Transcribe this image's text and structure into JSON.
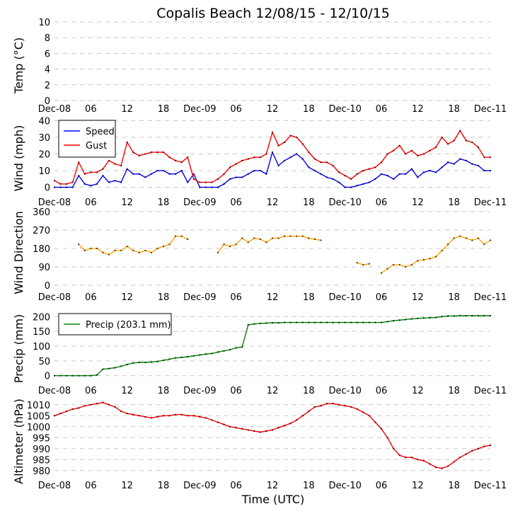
{
  "chart_data": [
    {
      "type": "line",
      "id": "temp",
      "title": "Copalis Beach 12/08/15 - 12/10/15",
      "ylabel": "Temp ($^{\\circ}$C)",
      "ylabel_display": "Temp (°C)",
      "ylim": [
        0,
        10
      ],
      "yticks": [
        0,
        2,
        4,
        6,
        8,
        10
      ],
      "grid": true,
      "series": []
    },
    {
      "type": "line",
      "id": "wind",
      "ylabel": "Wind (mph)",
      "ylim": [
        -1,
        41
      ],
      "yticks": [
        0,
        10,
        20,
        30,
        40
      ],
      "grid": true,
      "legend": "top-left",
      "series": [
        {
          "name": "Speed",
          "color": "#0000ff",
          "values": [
            0,
            0,
            0,
            0,
            7,
            2,
            1,
            2,
            7,
            3,
            4,
            3,
            11,
            8,
            8,
            6,
            8,
            10,
            10,
            8,
            8,
            10,
            3,
            8,
            0,
            0,
            0,
            0,
            2,
            5,
            6,
            6,
            8,
            10,
            10,
            8,
            21,
            13,
            16,
            18,
            20,
            17,
            12,
            10,
            8,
            6,
            5,
            3,
            0,
            0,
            1,
            2,
            3,
            5,
            8,
            7,
            5,
            8,
            8,
            11,
            6,
            9,
            10,
            9,
            12,
            15,
            14,
            17,
            16,
            14,
            13,
            10,
            10
          ]
        },
        {
          "name": "Gust",
          "color": "#ff0000",
          "values": [
            4,
            2,
            2,
            3,
            15,
            8,
            9,
            9,
            11,
            16,
            14,
            13,
            27,
            21,
            19,
            20,
            21,
            21,
            21,
            18,
            16,
            15,
            18,
            5,
            3,
            3,
            3,
            5,
            8,
            12,
            14,
            16,
            17,
            18,
            18,
            20,
            33,
            25,
            27,
            31,
            30,
            26,
            21,
            17,
            15,
            15,
            13,
            9,
            7,
            5,
            8,
            10,
            11,
            12,
            15,
            20,
            22,
            25,
            20,
            22,
            19,
            20,
            22,
            24,
            30,
            26,
            28,
            34,
            28,
            27,
            24,
            18,
            18
          ]
        }
      ]
    },
    {
      "type": "line",
      "id": "direction",
      "ylabel": "Wind Direction",
      "ylim": [
        0,
        360
      ],
      "yticks": [
        0,
        90,
        180,
        270,
        360
      ],
      "grid": true,
      "series": [
        {
          "name": "Direction",
          "color": "#ffa500",
          "values": [
            null,
            null,
            null,
            null,
            200,
            170,
            180,
            180,
            160,
            150,
            170,
            170,
            190,
            170,
            160,
            170,
            160,
            180,
            190,
            200,
            240,
            240,
            225,
            null,
            null,
            null,
            null,
            160,
            200,
            190,
            200,
            230,
            210,
            230,
            225,
            210,
            230,
            230,
            240,
            240,
            240,
            240,
            230,
            225,
            220,
            null,
            null,
            null,
            null,
            null,
            110,
            100,
            105,
            null,
            60,
            80,
            100,
            100,
            90,
            100,
            120,
            125,
            130,
            140,
            170,
            200,
            230,
            240,
            230,
            220,
            230,
            200,
            220
          ]
        }
      ]
    },
    {
      "type": "line",
      "id": "precip",
      "ylabel": "Precip (mm)",
      "ylim": [
        -3,
        215
      ],
      "yticks": [
        0,
        50,
        100,
        150,
        200
      ],
      "grid": true,
      "legend": "top-left",
      "series": [
        {
          "name": "Precip (203.1 mm)",
          "color": "#008000",
          "values": [
            0,
            0,
            0,
            0,
            0,
            0,
            0,
            2,
            22,
            24,
            27,
            32,
            38,
            43,
            45,
            45,
            46,
            48,
            52,
            56,
            60,
            62,
            64,
            67,
            70,
            73,
            75,
            80,
            84,
            88,
            94,
            97,
            172,
            175,
            177,
            178,
            179,
            179,
            180,
            180,
            180,
            180,
            180,
            180,
            180,
            180,
            180,
            180,
            180,
            180,
            180,
            180,
            180,
            180,
            180,
            183,
            186,
            188,
            190,
            192,
            194,
            195,
            196,
            197,
            200,
            202,
            202,
            203,
            203,
            203,
            203,
            203.1,
            203.1
          ]
        }
      ]
    },
    {
      "type": "line",
      "id": "altimeter",
      "ylabel": "Altimeter (hPa)",
      "xlabel": "Time (UTC)",
      "ylim": [
        978,
        1012.5
      ],
      "yticks": [
        980,
        985,
        990,
        995,
        1000,
        1005,
        1010
      ],
      "grid": true,
      "series": [
        {
          "name": "Altimeter",
          "color": "#ff0000",
          "values": [
            1005,
            1006,
            1007,
            1008,
            1008.5,
            1009.5,
            1010,
            1010.5,
            1011,
            1010,
            1009,
            1007,
            1006,
            1005.5,
            1005,
            1004.5,
            1004,
            1004.5,
            1005,
            1005,
            1005.5,
            1005.5,
            1005,
            1005,
            1004.5,
            1004,
            1003,
            1002,
            1001,
            1000,
            999.5,
            999,
            998.5,
            998,
            997.5,
            998,
            998.5,
            999.5,
            1000.5,
            1001.5,
            1003,
            1005,
            1007,
            1009,
            1009.5,
            1010.5,
            1010.5,
            1010,
            1009.5,
            1009,
            1008,
            1006.5,
            1005,
            1002,
            999,
            995,
            990,
            987,
            986,
            986,
            985,
            984.5,
            983,
            981.5,
            981,
            982,
            984,
            986,
            987.5,
            989,
            990,
            991,
            991.5
          ]
        }
      ]
    }
  ],
  "x_axis": {
    "hours_span": 72,
    "tick_labels": [
      "Dec-08",
      "06",
      "12",
      "18",
      "Dec-09",
      "06",
      "12",
      "18",
      "Dec-10",
      "06",
      "12",
      "18",
      "Dec-11"
    ]
  }
}
